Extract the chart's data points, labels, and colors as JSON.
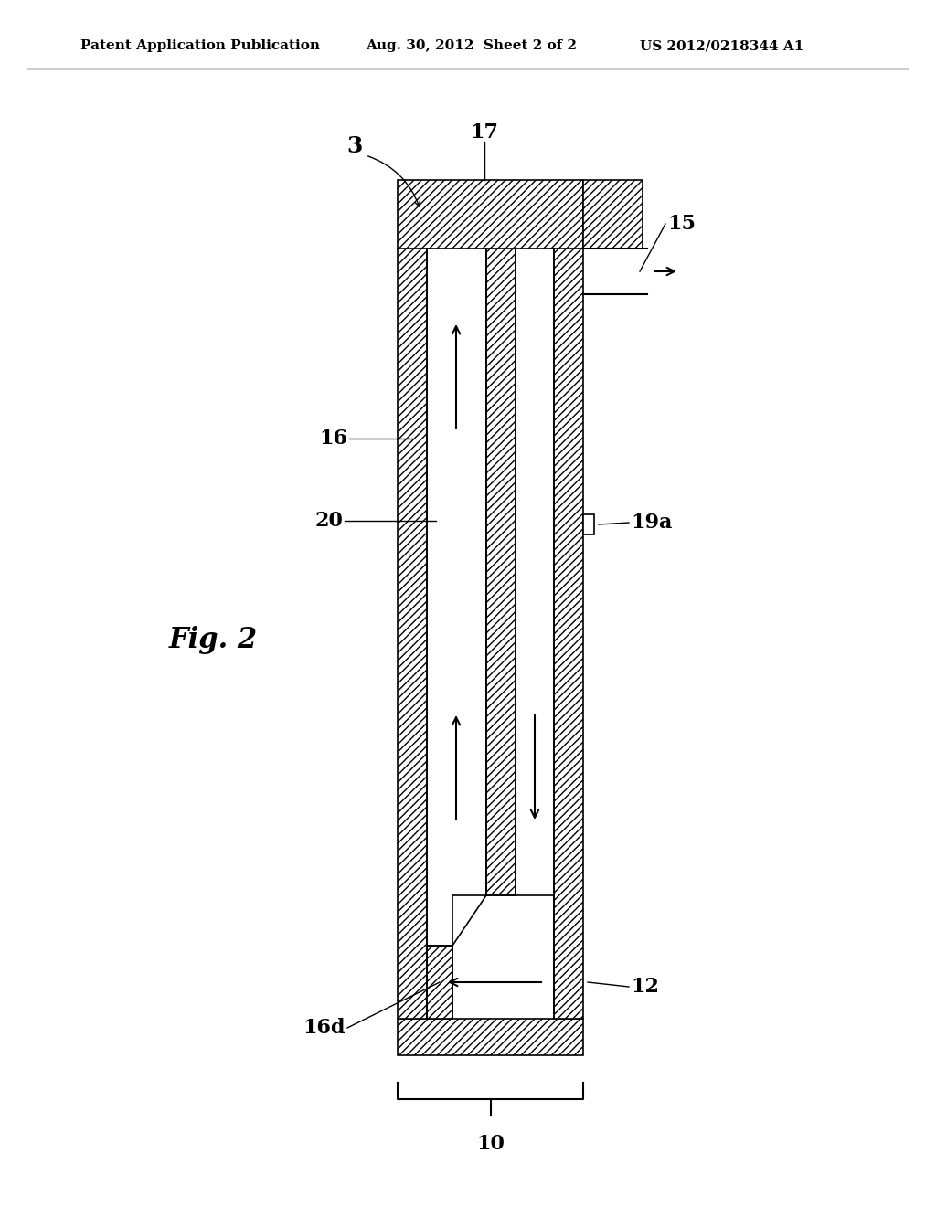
{
  "bg_color": "#ffffff",
  "line_color": "#000000",
  "hatch_color": "#000000",
  "header_left": "Patent Application Publication",
  "header_mid": "Aug. 30, 2012  Sheet 2 of 2",
  "header_right": "US 2012/0218344 A1",
  "fig_label": "Fig. 2",
  "label_3": "3",
  "label_10": "10",
  "label_12": "12",
  "label_15": "15",
  "label_16": "16",
  "label_16d": "16d",
  "label_17": "17",
  "label_19a": "19a",
  "label_20": "20"
}
